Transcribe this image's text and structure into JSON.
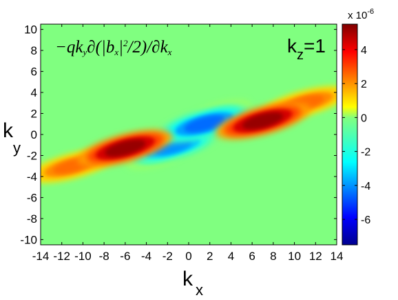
{
  "chart_data": {
    "type": "heatmap",
    "title": "",
    "xlabel": "k",
    "xlabel_sub": "x",
    "ylabel": "k",
    "ylabel_sub": "y",
    "xlim": [
      -14,
      14
    ],
    "ylim": [
      -10.5,
      10.5
    ],
    "x_ticks": [
      -14,
      -12,
      -10,
      -8,
      -6,
      -4,
      -2,
      0,
      2,
      4,
      6,
      8,
      10,
      12,
      14
    ],
    "y_ticks": [
      -10,
      -8,
      -6,
      -4,
      -2,
      0,
      2,
      4,
      6,
      8,
      10
    ],
    "annotation": {
      "formula_parts": [
        "−q",
        "k",
        "∂(|",
        "b",
        "|",
        "2",
        "/2)/∂",
        "k"
      ],
      "formula_subs": [
        "y",
        "x",
        "x"
      ],
      "label": "k",
      "label_sub": "z",
      "label_value": "=1"
    },
    "colorbar": {
      "exponent_text": "x 10",
      "exponent_power": "-6",
      "ticks": [
        4,
        2,
        0,
        -2,
        -4,
        -6
      ],
      "tick_labels": [
        "4",
        "2",
        "0",
        "-2",
        "-4",
        "-6"
      ],
      "range": [
        -7.5,
        5.5
      ],
      "colormap": "jet"
    },
    "background_value": 0,
    "features": [
      {
        "x": -6,
        "y": -1.3,
        "value": 5.2
      },
      {
        "x": 7,
        "y": 1.3,
        "value": 5.2
      },
      {
        "x": -11,
        "y": -3,
        "value": 2.5
      },
      {
        "x": 11,
        "y": 3,
        "value": 2.5
      },
      {
        "x": 1.5,
        "y": 1.0,
        "value": -4.5
      },
      {
        "x": -1.5,
        "y": -1.2,
        "value": -4.0
      },
      {
        "x": -3,
        "y": -2,
        "value": -1.5
      },
      {
        "x": 3,
        "y": 2,
        "value": -1.5
      }
    ]
  }
}
